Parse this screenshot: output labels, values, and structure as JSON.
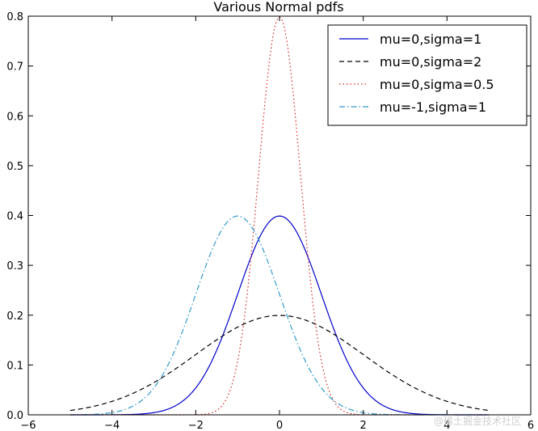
{
  "chart_data": {
    "type": "line",
    "title": "Various Normal pdfs",
    "xlabel": "",
    "ylabel": "",
    "xlim": [
      -6,
      6
    ],
    "ylim": [
      0,
      0.8
    ],
    "x_ticks": [
      -6,
      -4,
      -2,
      0,
      2,
      4,
      6
    ],
    "x_tick_labels": [
      "−6",
      "−4",
      "−2",
      "0",
      "2",
      "4",
      "6"
    ],
    "y_ticks": [
      0.0,
      0.1,
      0.2,
      0.3,
      0.4,
      0.5,
      0.6,
      0.7,
      0.8
    ],
    "y_tick_labels": [
      "0.0",
      "0.1",
      "0.2",
      "0.3",
      "0.4",
      "0.5",
      "0.6",
      "0.7",
      "0.8"
    ],
    "x_range": [
      -5,
      5
    ],
    "grid": false,
    "legend_position": "top-right",
    "series": [
      {
        "name": "mu=0,sigma=1",
        "mu": 0,
        "sigma": 1,
        "color": "#0000cc",
        "style": "solid"
      },
      {
        "name": "mu=0,sigma=2",
        "mu": 0,
        "sigma": 2,
        "color": "#000000",
        "style": "dashed"
      },
      {
        "name": "mu=0,sigma=0.5",
        "mu": 0,
        "sigma": 0.5,
        "color": "#e02020",
        "style": "dotted"
      },
      {
        "name": "mu=-1,sigma=1",
        "mu": -1,
        "sigma": 1,
        "color": "#3399cc",
        "style": "dashdot"
      }
    ]
  },
  "watermark": "@稀土掘金技术社区"
}
